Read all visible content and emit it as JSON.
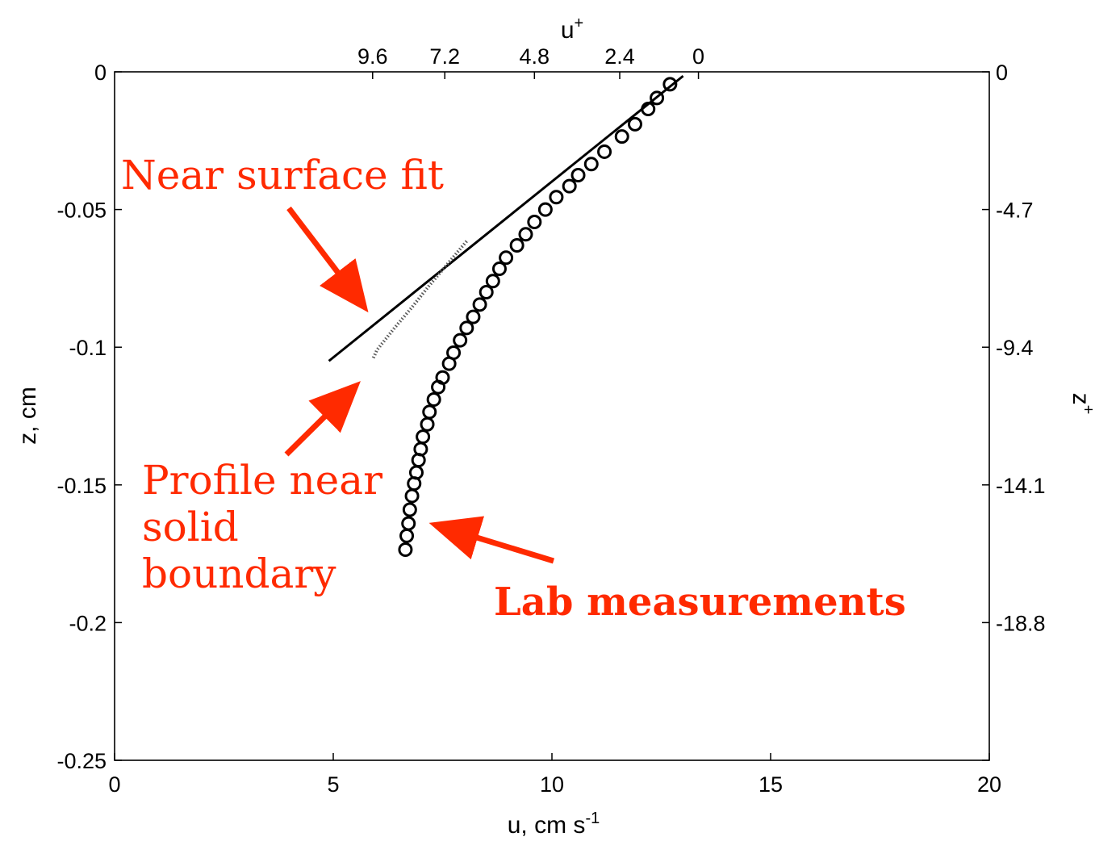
{
  "chart_data": {
    "type": "scatter",
    "title": "",
    "xlabel": "u, cm s",
    "xlabel_superscript": "-1",
    "ylabel": "z, cm",
    "top_xlabel": "u",
    "top_xlabel_superscript": "+",
    "right_ylabel": "z",
    "right_ylabel_superscript": "+",
    "xlim": [
      0,
      20
    ],
    "ylim": [
      -0.25,
      0
    ],
    "x_ticks": [
      0,
      5,
      10,
      15,
      20
    ],
    "y_ticks": [
      0,
      -0.05,
      -0.1,
      -0.15,
      -0.2,
      -0.25
    ],
    "x_tick_labels": [
      "0",
      "5",
      "10",
      "15",
      "20"
    ],
    "y_tick_labels": [
      "0",
      "-0.05",
      "-0.1",
      "-0.15",
      "-0.2",
      "-0.25"
    ],
    "top_ticks": [
      {
        "label": "9.6",
        "u": 5.9
      },
      {
        "label": "7.2",
        "u": 7.55
      },
      {
        "label": "4.8",
        "u": 9.6
      },
      {
        "label": "2.4",
        "u": 11.55
      },
      {
        "label": "0",
        "u": 13.35
      }
    ],
    "right_ticks": [
      {
        "label": "0",
        "z": 0
      },
      {
        "label": "-4.7",
        "z": -0.05
      },
      {
        "label": "-9.4",
        "z": -0.1
      },
      {
        "label": "-14.1",
        "z": -0.15
      },
      {
        "label": "-18.8",
        "z": -0.2
      }
    ],
    "grid": false,
    "series": [
      {
        "name": "Lab measurements",
        "style": "open-circle",
        "x": [
          12.7,
          12.4,
          12.2,
          11.9,
          11.6,
          11.2,
          10.9,
          10.6,
          10.4,
          10.1,
          9.85,
          9.6,
          9.4,
          9.2,
          8.95,
          8.8,
          8.65,
          8.5,
          8.35,
          8.2,
          8.05,
          7.9,
          7.75,
          7.65,
          7.5,
          7.4,
          7.3,
          7.2,
          7.15,
          7.05,
          7.0,
          6.95,
          6.9,
          6.85,
          6.8,
          6.75,
          6.72,
          6.68,
          6.65
        ],
        "y": [
          -0.0045,
          -0.0095,
          -0.0135,
          -0.019,
          -0.0235,
          -0.029,
          -0.0335,
          -0.0375,
          -0.0415,
          -0.0455,
          -0.05,
          -0.0545,
          -0.059,
          -0.063,
          -0.0675,
          -0.0715,
          -0.076,
          -0.08,
          -0.0845,
          -0.089,
          -0.093,
          -0.0975,
          -0.102,
          -0.106,
          -0.111,
          -0.1145,
          -0.119,
          -0.1235,
          -0.128,
          -0.1325,
          -0.137,
          -0.141,
          -0.1455,
          -0.1495,
          -0.154,
          -0.159,
          -0.164,
          -0.1685,
          -0.1735
        ]
      },
      {
        "name": "Near surface fit",
        "style": "solid-line",
        "x": [
          13.0,
          4.9
        ],
        "y": [
          -0.0015,
          -0.105
        ]
      },
      {
        "name": "Profile near solid boundary",
        "style": "dotted-line",
        "x": [
          8.05,
          7.6,
          7.2,
          6.8,
          6.4,
          6.0,
          5.9
        ],
        "y": [
          -0.0615,
          -0.07,
          -0.0775,
          -0.0855,
          -0.093,
          -0.101,
          -0.1045
        ]
      }
    ],
    "annotations": [
      {
        "text": "Near surface fit",
        "lines": [
          "Near surface fit"
        ],
        "style": "regular"
      },
      {
        "text": "Profile near solid boundary",
        "lines": [
          "Profile near",
          "solid",
          "boundary"
        ],
        "style": "regular"
      },
      {
        "text": "Lab measurements",
        "lines": [
          "Lab measurements"
        ],
        "style": "bold"
      }
    ],
    "annotation_color": "#ff2a00",
    "series_color": "#000000"
  }
}
